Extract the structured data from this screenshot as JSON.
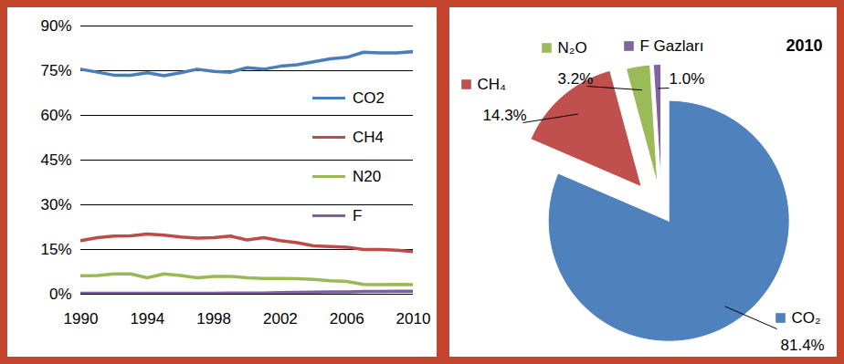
{
  "chart_data": [
    {
      "type": "line",
      "x": [
        1990,
        1991,
        1992,
        1993,
        1994,
        1995,
        1996,
        1997,
        1998,
        1999,
        2000,
        2001,
        2002,
        2003,
        2004,
        2005,
        2006,
        2007,
        2008,
        2009,
        2010
      ],
      "series": [
        {
          "name": "CO2",
          "color": "#4a7ebb",
          "values": [
            75.5,
            74.5,
            73.5,
            73.5,
            74.3,
            73.3,
            74.3,
            75.5,
            74.8,
            74.5,
            76,
            75.5,
            76.5,
            77,
            78,
            79,
            79.5,
            81.2,
            81,
            81,
            81.4
          ]
        },
        {
          "name": "CH4",
          "color": "#be4b48",
          "values": [
            18,
            19,
            19.5,
            19.6,
            20.2,
            19.8,
            19.2,
            18.8,
            19,
            19.5,
            18.2,
            19,
            18,
            17.3,
            16.2,
            16,
            15.8,
            15,
            15,
            14.8,
            14.3
          ]
        },
        {
          "name": "N20",
          "color": "#98b954",
          "values": [
            6.2,
            6.3,
            6.8,
            6.8,
            5.5,
            6.8,
            6.3,
            5.5,
            6,
            6,
            5.5,
            5.3,
            5.3,
            5.2,
            5,
            4.5,
            4.3,
            3.3,
            3.2,
            3.3,
            3.2
          ]
        },
        {
          "name": "F",
          "color": "#7d60a0",
          "values": [
            0.3,
            0.3,
            0.3,
            0.3,
            0.3,
            0.3,
            0.3,
            0.3,
            0.3,
            0.35,
            0.4,
            0.4,
            0.5,
            0.6,
            0.7,
            0.8,
            0.8,
            0.9,
            0.9,
            1.0,
            1.0
          ]
        }
      ],
      "xlim": [
        1990,
        2010
      ],
      "xticks": [
        1990,
        1994,
        1998,
        2002,
        2006,
        2010
      ],
      "ylim": [
        0,
        90
      ],
      "yticks": [
        {
          "value": 0,
          "label": "0%"
        },
        {
          "value": 15,
          "label": "15%"
        },
        {
          "value": 30,
          "label": "30%"
        },
        {
          "value": 45,
          "label": "45%"
        },
        {
          "value": 60,
          "label": "60%"
        },
        {
          "value": 75,
          "label": "75%"
        },
        {
          "value": 90,
          "label": "90%"
        }
      ],
      "grid": true,
      "legend": "right"
    },
    {
      "type": "pie",
      "title": "2010",
      "categories": [
        "CO₂",
        "CH₄",
        "N₂O",
        "F Gazları"
      ],
      "values": [
        81.4,
        14.3,
        3.2,
        1.0
      ],
      "value_labels": [
        "81.4%",
        "14.3%",
        "3.2%",
        "1.0%"
      ],
      "colors": [
        "#4f81bd",
        "#c0504d",
        "#9bbb59",
        "#8064a2"
      ],
      "data_labels": true
    }
  ]
}
